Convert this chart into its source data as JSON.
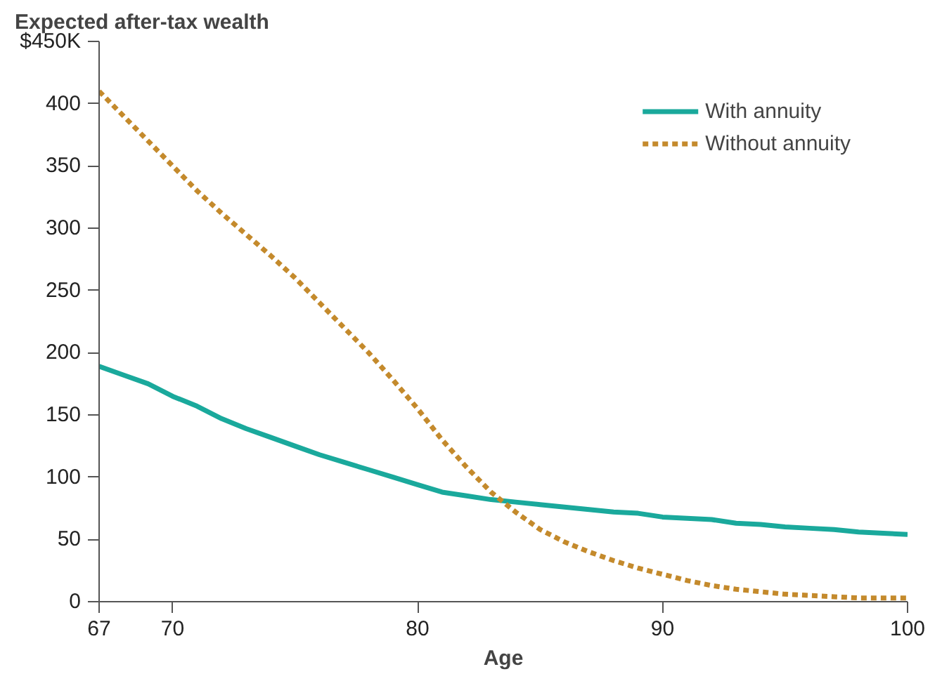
{
  "chart_data": {
    "type": "line",
    "title": "Expected after-tax wealth",
    "xlabel": "Age",
    "x": [
      67,
      68,
      69,
      70,
      71,
      72,
      73,
      74,
      75,
      76,
      77,
      78,
      79,
      80,
      81,
      82,
      83,
      84,
      85,
      86,
      87,
      88,
      89,
      90,
      91,
      92,
      93,
      94,
      95,
      96,
      97,
      98,
      99,
      100
    ],
    "series": [
      {
        "name": "With annuity",
        "color": "#1aa99c",
        "line_style": "solid",
        "values": [
          189,
          182,
          175,
          165,
          157,
          147,
          139,
          132,
          125,
          118,
          112,
          106,
          100,
          94,
          88,
          85,
          82,
          80,
          78,
          76,
          74,
          72,
          71,
          68,
          67,
          66,
          63,
          62,
          60,
          59,
          58,
          56,
          55,
          54
        ]
      },
      {
        "name": "Without annuity",
        "color": "#c48a2c",
        "line_style": "dashed",
        "values": [
          410,
          390,
          370,
          350,
          330,
          312,
          295,
          278,
          260,
          240,
          220,
          200,
          178,
          155,
          130,
          108,
          88,
          72,
          58,
          48,
          40,
          33,
          27,
          22,
          17,
          13,
          10,
          8,
          6,
          5,
          4,
          3,
          3,
          3
        ]
      }
    ],
    "xlim": [
      67,
      100
    ],
    "xticks": [
      67,
      70,
      80,
      90,
      100
    ],
    "ylim": [
      0,
      450
    ],
    "yticks": [
      0,
      50,
      100,
      150,
      200,
      250,
      300,
      350,
      400,
      {
        "value": 450,
        "label": "$450K"
      }
    ],
    "grid": false,
    "legend": "top right"
  }
}
